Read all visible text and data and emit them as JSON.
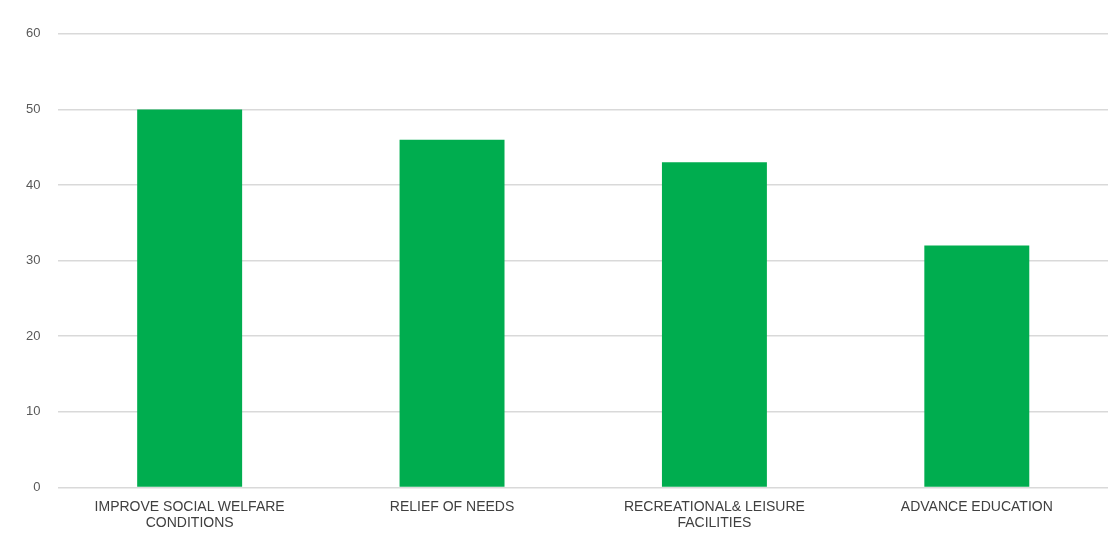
{
  "chart_data": {
    "type": "bar",
    "categories": [
      "IMPROVE SOCIAL WELFARE CONDITIONS",
      "RELIEF OF NEEDS",
      "RECREATIONAL& LEISURE FACILITIES",
      "ADVANCE EDUCATION"
    ],
    "values": [
      50,
      46,
      43,
      32
    ],
    "color": "#00ad4f",
    "ylim": [
      0,
      60
    ],
    "yticks": [
      0,
      10,
      20,
      30,
      40,
      50,
      60
    ],
    "grid": "y",
    "legend": false
  }
}
